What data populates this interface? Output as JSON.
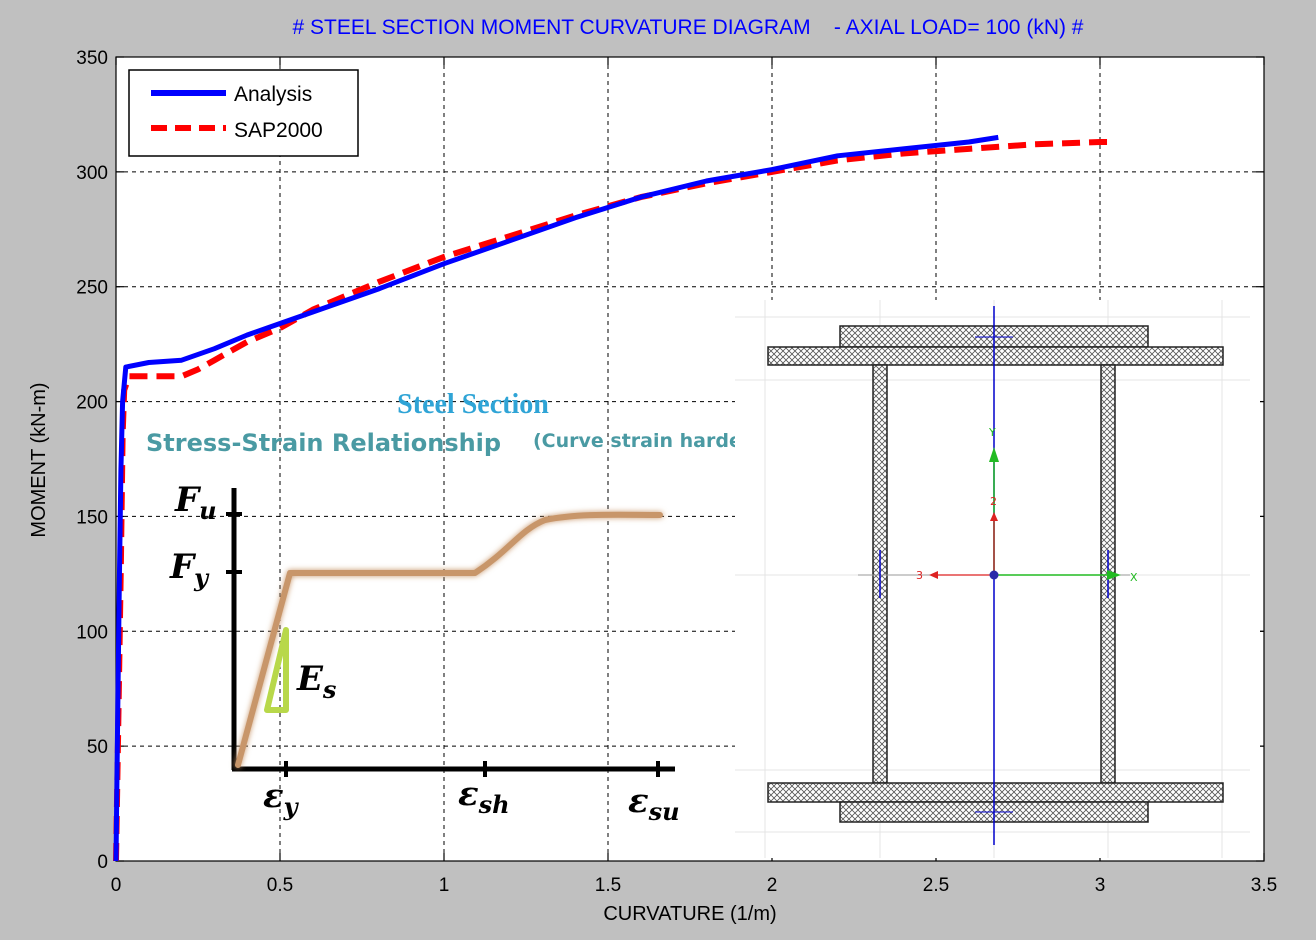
{
  "chart_data": {
    "type": "line",
    "title": "# STEEL SECTION MOMENT CURVATURE DIAGRAM    - AXIAL LOAD= 100 (kN) #",
    "xlabel": "CURVATURE (1/m)",
    "ylabel": "MOMENT (kN-m)",
    "xlim": [
      0,
      3.5
    ],
    "ylim": [
      0,
      350
    ],
    "xticks": [
      0,
      0.5,
      1,
      1.5,
      2,
      2.5,
      3,
      3.5
    ],
    "yticks": [
      0,
      50,
      100,
      150,
      200,
      250,
      300,
      350
    ],
    "xtick_labels": [
      "0",
      "0.5",
      "1",
      "1.5",
      "2",
      "2.5",
      "3",
      "3.5"
    ],
    "ytick_labels": [
      "0",
      "50",
      "100",
      "150",
      "200",
      "250",
      "300",
      "350"
    ],
    "grid": true,
    "legend_position": "top-left",
    "series": [
      {
        "name": "Analysis",
        "color": "#0000ff",
        "style": "solid",
        "x": [
          0,
          0.005,
          0.01,
          0.015,
          0.02,
          0.03,
          0.1,
          0.2,
          0.3,
          0.4,
          0.5,
          0.6,
          0.8,
          1.0,
          1.2,
          1.4,
          1.6,
          1.8,
          2.0,
          2.2,
          2.4,
          2.6,
          2.69
        ],
        "y": [
          0,
          60,
          120,
          170,
          200,
          215,
          217,
          218,
          223,
          229,
          234,
          239,
          249,
          260,
          270,
          280,
          289,
          296,
          301,
          307,
          310,
          313,
          315
        ]
      },
      {
        "name": "SAP2000",
        "color": "#ff0000",
        "style": "dashed",
        "x": [
          0,
          0.007,
          0.015,
          0.02,
          0.025,
          0.04,
          0.15,
          0.2,
          0.25,
          0.3,
          0.4,
          0.5,
          0.6,
          0.8,
          1.0,
          1.2,
          1.4,
          1.6,
          1.8,
          2.0,
          2.2,
          2.4,
          2.6,
          2.8,
          3.0,
          3.03
        ],
        "y": [
          0,
          60,
          130,
          185,
          205,
          211,
          211,
          211,
          214,
          218,
          226,
          232,
          240,
          252,
          263,
          272,
          281,
          289,
          295,
          300,
          305,
          308,
          310,
          312,
          313,
          313
        ]
      }
    ]
  },
  "inset_stress_strain": {
    "title": "Steel Section",
    "subtitle": "Stress-Strain Relationship",
    "subtitle_note": "(Curve strain hardening)",
    "y_labels": [
      "F",
      "u",
      "F",
      "y"
    ],
    "x_labels": [
      "ε",
      "y",
      "ε",
      "sh",
      "ε",
      "su"
    ],
    "modulus_label": [
      "E",
      "s"
    ],
    "curve_color": "#c8966a",
    "triangle_color": "#b8d84a"
  },
  "inset_section": {
    "axis_y_label": "Y",
    "axis_x_label": "X",
    "local_2_label": "2",
    "local_3_label": "3",
    "y_axis_color": "#22bb22",
    "local_axis_color": "#dd2222",
    "centerline_color": "#0000cc"
  }
}
